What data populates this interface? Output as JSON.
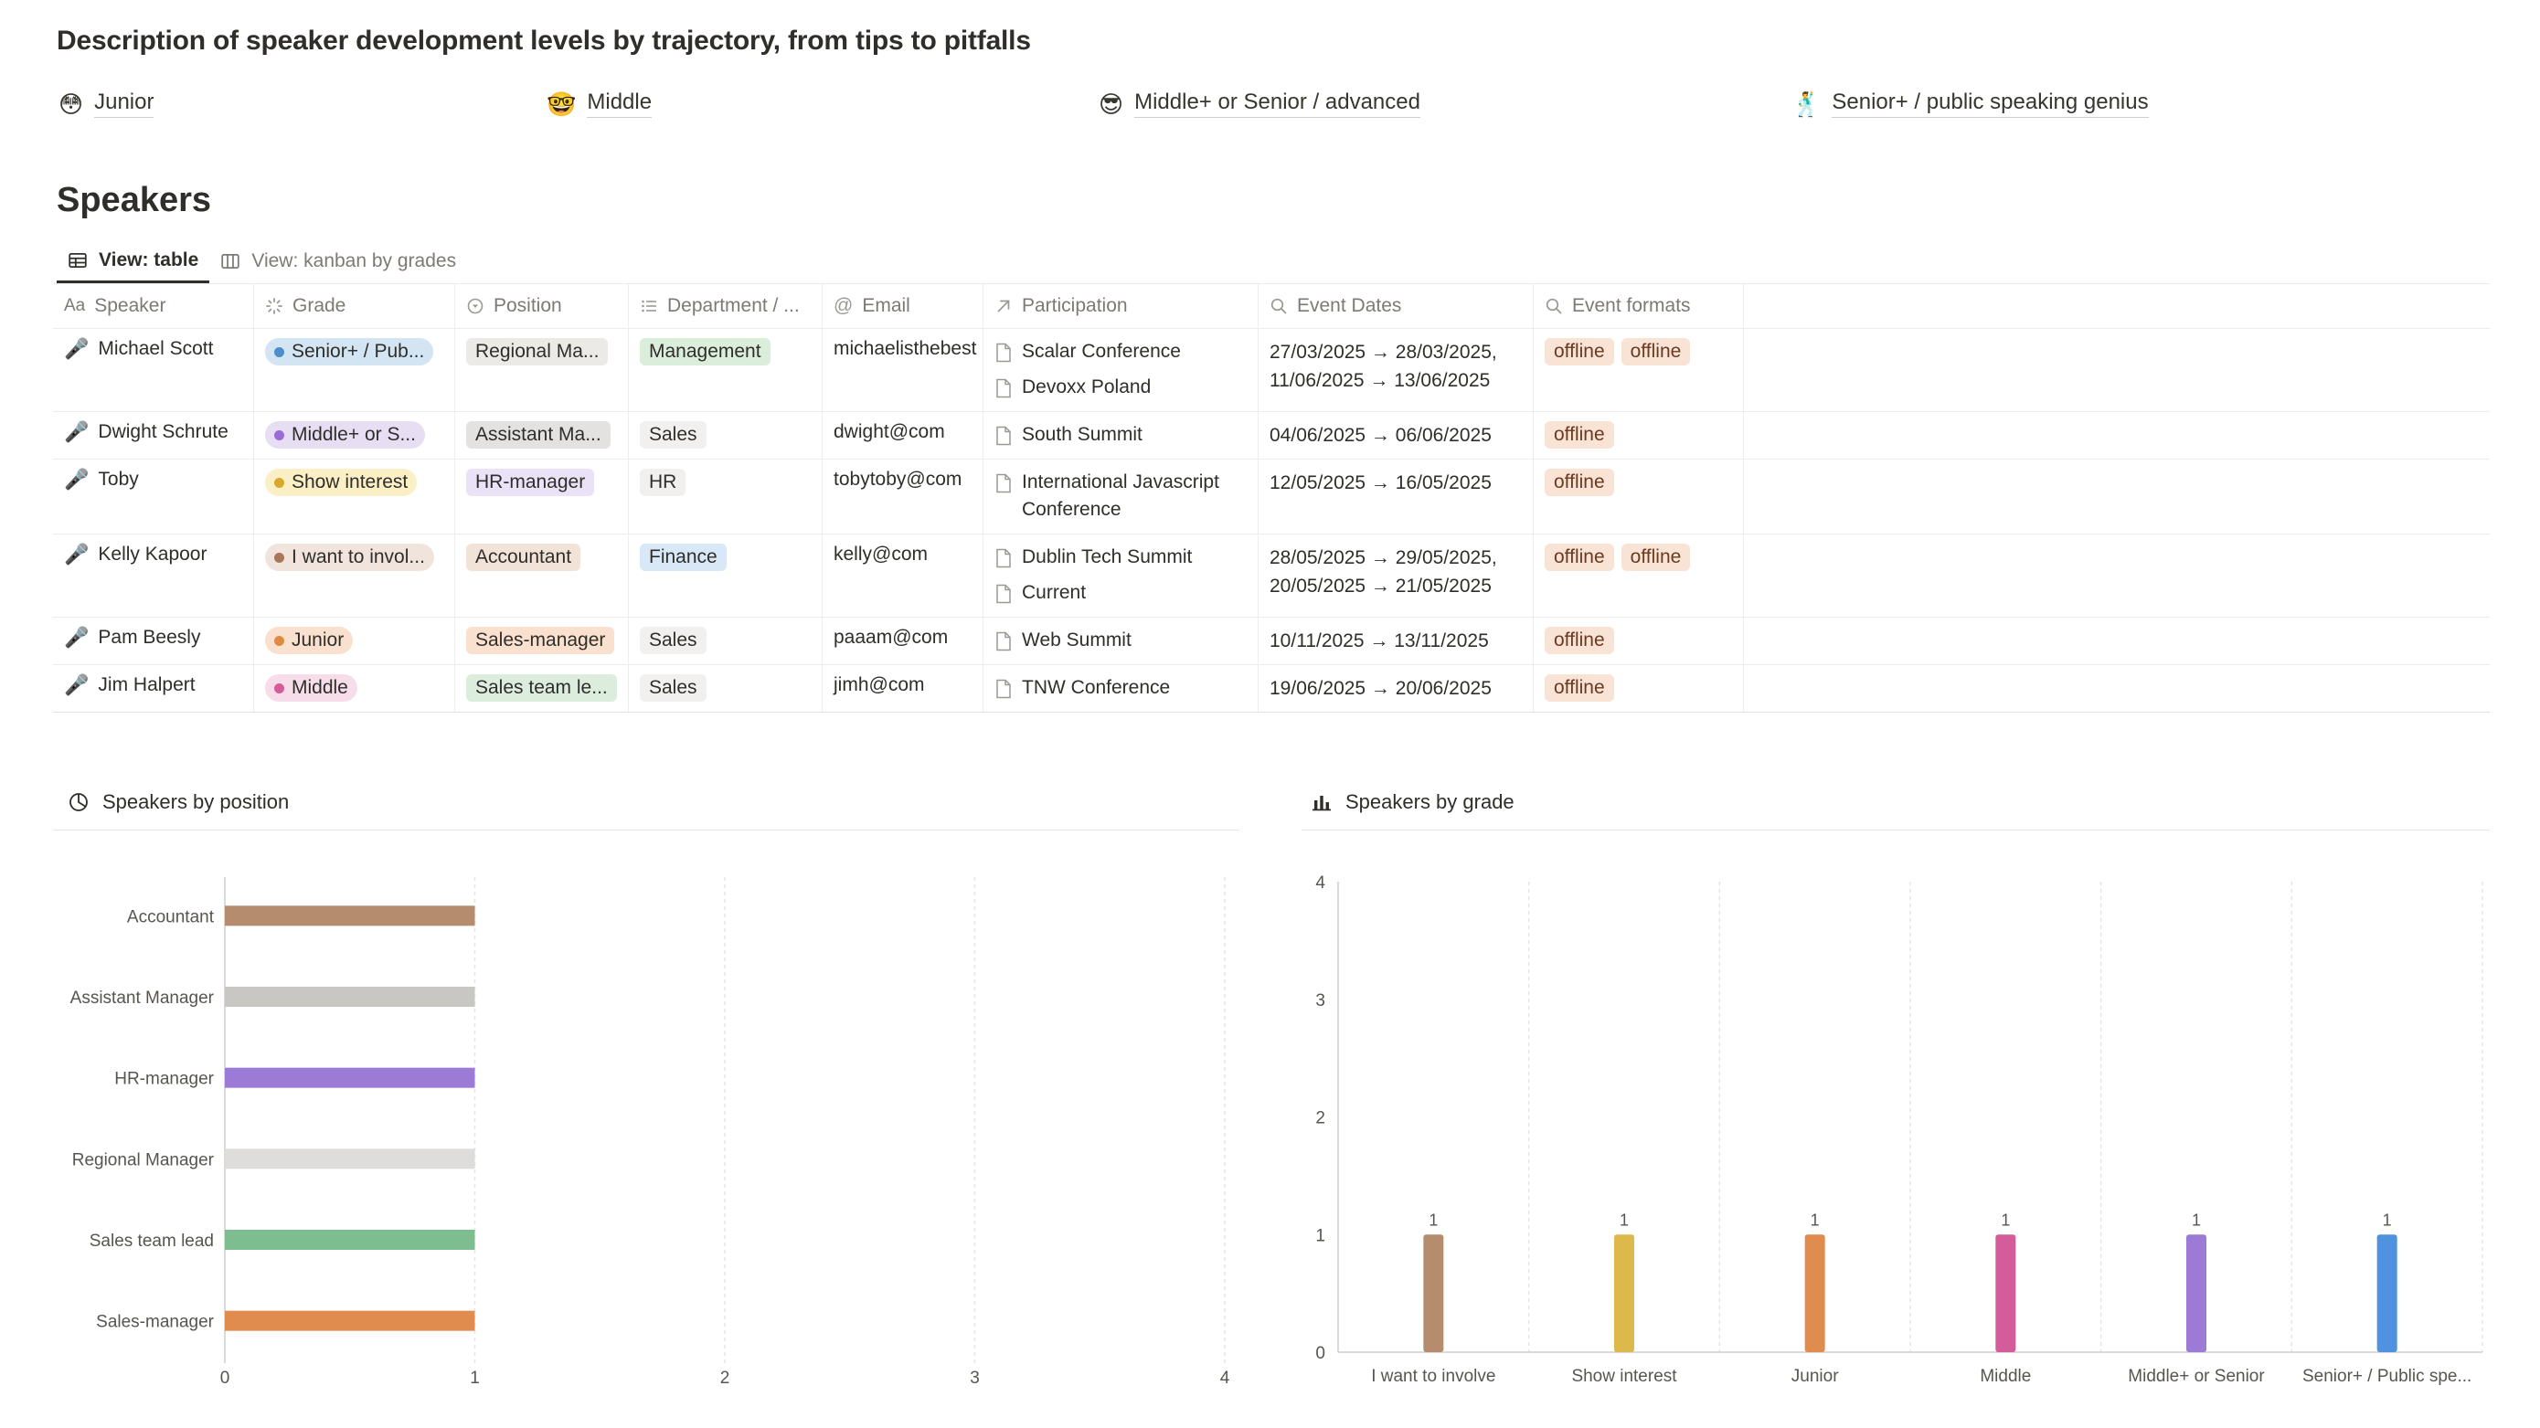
{
  "page_title": "Description of speaker development levels by trajectory, from tips to pitfalls",
  "levels": [
    {
      "emoji": "😳",
      "label": "Junior"
    },
    {
      "emoji": "🤓",
      "label": "Middle"
    },
    {
      "emoji": "😎",
      "label": "Middle+ or Senior / advanced"
    },
    {
      "emoji": "🕺",
      "label": "Senior+ / public speaking genius"
    }
  ],
  "section_title": "Speakers",
  "tabs": [
    {
      "label": "View: table",
      "icon": "table-icon",
      "active": true
    },
    {
      "label": "View: kanban by grades",
      "icon": "kanban-icon",
      "active": false
    }
  ],
  "table": {
    "columns": [
      {
        "label": "Speaker",
        "icon": "text-aa-icon"
      },
      {
        "label": "Grade",
        "icon": "status-icon"
      },
      {
        "label": "Position",
        "icon": "select-icon"
      },
      {
        "label": "Department / ...",
        "icon": "multiselect-icon"
      },
      {
        "label": "Email",
        "icon": "at-icon"
      },
      {
        "label": "Participation",
        "icon": "relation-arrow-icon"
      },
      {
        "label": "Event Dates",
        "icon": "search-icon"
      },
      {
        "label": "Event formats",
        "icon": "search-icon"
      }
    ],
    "rows": [
      {
        "speaker": "Michael Scott",
        "grade": "Senior+ / Pub...",
        "grade_bg": "#d3e5f3",
        "grade_dot": "#4c8fc8",
        "position": "Regional Ma...",
        "position_bg": "#ebeae7",
        "department": "Management",
        "department_bg": "#dbeddb",
        "email": "michaelisthebest",
        "participation": [
          "Scalar Conference",
          "Devoxx Poland"
        ],
        "dates": "27/03/2025 → 28/03/2025, 11/06/2025 → 13/06/2025",
        "formats": [
          "offline",
          "offline"
        ]
      },
      {
        "speaker": "Dwight Schrute",
        "grade": "Middle+ or S...",
        "grade_bg": "#e7def4",
        "grade_dot": "#9a6ad6",
        "position": "Assistant Ma...",
        "position_bg": "#e3e2e0",
        "department": "Sales",
        "department_bg": "#f1f0ee",
        "email": "dwight@com",
        "participation": [
          "South Summit"
        ],
        "dates": "04/06/2025 → 06/06/2025",
        "formats": [
          "offline"
        ]
      },
      {
        "speaker": "Toby",
        "grade": "Show interest",
        "grade_bg": "#fbefc6",
        "grade_dot": "#d9a82d",
        "position": "HR-manager",
        "position_bg": "#eae2f6",
        "department": "HR",
        "department_bg": "#f1f0ee",
        "email": "tobytoby@com",
        "participation": [
          "International Javascript Conference"
        ],
        "dates": "12/05/2025 → 16/05/2025",
        "formats": [
          "offline"
        ]
      },
      {
        "speaker": "Kelly Kapoor",
        "grade": "I want to invol...",
        "grade_bg": "#f0e4dc",
        "grade_dot": "#a8775a",
        "position": "Accountant",
        "position_bg": "#f2e3d9",
        "department": "Finance",
        "department_bg": "#d8e8f6",
        "email": "kelly@com",
        "participation": [
          "Dublin Tech Summit",
          "Current"
        ],
        "dates": "28/05/2025 → 29/05/2025, 20/05/2025 → 21/05/2025",
        "formats": [
          "offline",
          "offline"
        ]
      },
      {
        "speaker": "Pam Beesly",
        "grade": "Junior",
        "grade_bg": "#fae1cf",
        "grade_dot": "#de8a43",
        "position": "Sales-manager",
        "position_bg": "#fae1cf",
        "department": "Sales",
        "department_bg": "#f1f0ee",
        "email": "paaam@com",
        "participation": [
          "Web Summit"
        ],
        "dates": "10/11/2025 → 13/11/2025",
        "formats": [
          "offline"
        ]
      },
      {
        "speaker": "Jim Halpert",
        "grade": "Middle",
        "grade_bg": "#f6dde9",
        "grade_dot": "#d45d99",
        "position": "Sales team le...",
        "position_bg": "#dcedde",
        "department": "Sales",
        "department_bg": "#f1f0ee",
        "email": "jimh@com",
        "participation": [
          "TNW Conference"
        ],
        "dates": "19/06/2025 → 20/06/2025",
        "formats": [
          "offline"
        ]
      }
    ]
  },
  "charts": {
    "position_title": "Speakers by position",
    "grade_title": "Speakers by grade"
  },
  "chart_data": [
    {
      "type": "bar",
      "orientation": "horizontal",
      "title": "Speakers by position",
      "categories": [
        "Accountant",
        "Assistant Manager",
        "HR-manager",
        "Regional Manager",
        "Sales team lead",
        "Sales-manager"
      ],
      "values": [
        1,
        1,
        1,
        1,
        1,
        1
      ],
      "colors": [
        "#b68c6e",
        "#c8c7c4",
        "#9c7bd6",
        "#dedddb",
        "#7dbd90",
        "#e08c4f"
      ],
      "xlim": [
        0,
        4
      ],
      "xticks": [
        0,
        1,
        2,
        3,
        4
      ],
      "grid": true
    },
    {
      "type": "bar",
      "orientation": "vertical",
      "title": "Speakers by grade",
      "categories": [
        "I want to involve",
        "Show interest",
        "Junior",
        "Middle",
        "Middle+ or Senior",
        "Senior+ / Public spe..."
      ],
      "values": [
        1,
        1,
        1,
        1,
        1,
        1
      ],
      "colors": [
        "#b68c6e",
        "#ddb84a",
        "#e08c4f",
        "#d45d99",
        "#9c7bd6",
        "#4f93e0"
      ],
      "ylim": [
        0,
        4
      ],
      "yticks": [
        0,
        1,
        2,
        3,
        4
      ],
      "data_labels": true,
      "grid": true
    }
  ]
}
